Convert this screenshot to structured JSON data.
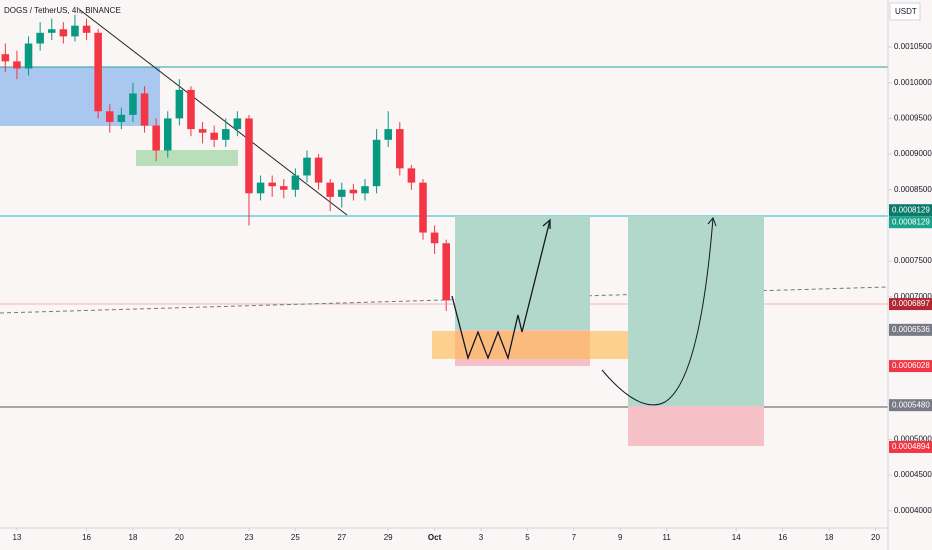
{
  "chart_data": {
    "type": "candlestick",
    "title": "DOGS / TetherUS, 4h, BINANCE",
    "axis_unit": "USDT",
    "up_color": "#089981",
    "down_color": "#f23645",
    "x": [
      -0.5,
      0,
      0.5,
      1,
      1.5,
      2,
      2.5,
      3,
      3.5,
      4,
      4.5,
      5,
      5.5,
      6,
      6.5,
      7,
      7.5,
      8,
      8.5,
      9,
      9.5,
      10,
      10.5,
      11,
      11.5,
      12,
      12.5,
      13,
      13.5,
      14,
      14.5,
      15,
      15.5,
      16,
      16.5,
      17,
      17.5,
      18,
      18.5
    ],
    "open": [
      0.00104,
      0.00103,
      0.00102,
      0.001055,
      0.00107,
      0.001075,
      0.001065,
      0.00108,
      0.00107,
      0.00096,
      0.000945,
      0.000955,
      0.000985,
      0.00094,
      0.000905,
      0.00095,
      0.00099,
      0.000935,
      0.00093,
      0.00092,
      0.000935,
      0.00095,
      0.000845,
      0.00086,
      0.000855,
      0.00085,
      0.00087,
      0.000895,
      0.00086,
      0.00084,
      0.00085,
      0.000845,
      0.000855,
      0.00092,
      0.000935,
      0.00088,
      0.00086,
      0.00079,
      0.000775
    ],
    "high": [
      0.001055,
      0.001045,
      0.001065,
      0.001085,
      0.00109,
      0.001085,
      0.001095,
      0.00109,
      0.001075,
      0.00097,
      0.000965,
      0.001,
      0.000995,
      0.00095,
      0.00096,
      0.001005,
      0.000995,
      0.000945,
      0.00094,
      0.00095,
      0.00096,
      0.000955,
      0.00087,
      0.00087,
      0.000865,
      0.00088,
      0.000905,
      0.0009,
      0.000865,
      0.00086,
      0.000858,
      0.000865,
      0.000935,
      0.00096,
      0.000945,
      0.000885,
      0.000865,
      0.0008,
      0.00078
    ],
    "low": [
      0.001015,
      0.001005,
      0.00101,
      0.001045,
      0.00106,
      0.001055,
      0.001058,
      0.00106,
      0.00095,
      0.00093,
      0.000935,
      0.000945,
      0.00093,
      0.00089,
      0.000895,
      0.00094,
      0.000925,
      0.000915,
      0.00091,
      0.00091,
      0.000925,
      0.0008,
      0.000835,
      0.00084,
      0.000838,
      0.00084,
      0.00086,
      0.00085,
      0.00082,
      0.000825,
      0.000835,
      0.000835,
      0.000845,
      0.00091,
      0.00087,
      0.00085,
      0.00078,
      0.00076,
      0.00068
    ],
    "close": [
      0.00103,
      0.00102,
      0.001055,
      0.00107,
      0.001075,
      0.001065,
      0.00108,
      0.00107,
      0.00096,
      0.000945,
      0.000955,
      0.000985,
      0.00094,
      0.000905,
      0.00095,
      0.00099,
      0.000935,
      0.00093,
      0.00092,
      0.000935,
      0.00095,
      0.000845,
      0.00086,
      0.000855,
      0.00085,
      0.00087,
      0.000895,
      0.00086,
      0.00084,
      0.00085,
      0.000845,
      0.000855,
      0.00092,
      0.000935,
      0.00088,
      0.00086,
      0.00079,
      0.000775,
      0.000695
    ],
    "xlim": [
      -0.73,
      37.54
    ],
    "xticks": [
      {
        "value": 0,
        "label": "13"
      },
      {
        "value": 3,
        "label": "16"
      },
      {
        "value": 5,
        "label": "18"
      },
      {
        "value": 7,
        "label": "20"
      },
      {
        "value": 10,
        "label": "23"
      },
      {
        "value": 12,
        "label": "25"
      },
      {
        "value": 14,
        "label": "27"
      },
      {
        "value": 16,
        "label": "29"
      },
      {
        "value": 18,
        "label": "Oct"
      },
      {
        "value": 20,
        "label": "3"
      },
      {
        "value": 22,
        "label": "5"
      },
      {
        "value": 24,
        "label": "7"
      },
      {
        "value": 26,
        "label": "9"
      },
      {
        "value": 28,
        "label": "11"
      },
      {
        "value": 31,
        "label": "14"
      },
      {
        "value": 33,
        "label": "16"
      },
      {
        "value": 35,
        "label": "18"
      },
      {
        "value": 37,
        "label": "20"
      }
    ],
    "ylim": [
      0.00038,
      0.001116
    ],
    "yticks": [
      {
        "value": 0.00105,
        "label": "0.0010500"
      },
      {
        "value": 0.001,
        "label": "0.0010000"
      },
      {
        "value": 0.00095,
        "label": "0.0009500"
      },
      {
        "value": 0.0009,
        "label": "0.0009000"
      },
      {
        "value": 0.00085,
        "label": "0.0008500"
      },
      {
        "value": 0.0008,
        "label": "0.0008000"
      },
      {
        "value": 0.00075,
        "label": "0.0007500"
      },
      {
        "value": 0.0007,
        "label": "0.0007000"
      },
      {
        "value": 0.00065,
        "label": "0.0006500"
      },
      {
        "value": 0.0006,
        "label": "0.0006000"
      },
      {
        "value": 0.00055,
        "label": "0.0005500"
      },
      {
        "value": 0.0005,
        "label": "0.0005000"
      },
      {
        "value": 0.00045,
        "label": "0.0004500"
      },
      {
        "value": 0.0004,
        "label": "0.0004000"
      }
    ],
    "price_tags": [
      {
        "value": 0.0008129,
        "label": "0.0008129",
        "color": "#0b7a68"
      },
      {
        "value": 0.0008129,
        "label": "0.0008129",
        "color": "#1aa38c"
      },
      {
        "value": 0.0006897,
        "label": "0.0006897",
        "color": "#b22833"
      },
      {
        "value": 0.0006536,
        "label": "0.0006536",
        "color": "#787b86"
      },
      {
        "value": 0.0006028,
        "label": "0.0006028",
        "color": "#f23645"
      },
      {
        "value": 0.000548,
        "label": "0.0005480",
        "color": "#787b86"
      },
      {
        "value": 0.0004894,
        "label": "0.0004894",
        "color": "#f23645"
      }
    ]
  }
}
